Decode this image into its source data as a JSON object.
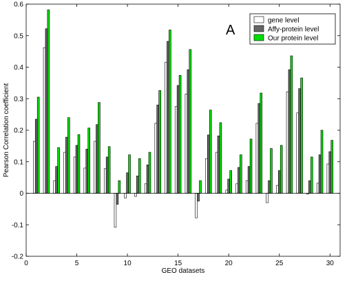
{
  "chart_data": {
    "type": "bar",
    "xlabel": "GEO datasets",
    "ylabel": "Pearson Correlation coefficient",
    "annotation": "A",
    "xlim": [
      0,
      31
    ],
    "ylim": [
      -0.2,
      0.6
    ],
    "xticks": [
      0,
      5,
      10,
      15,
      20,
      25,
      30
    ],
    "yticks": [
      -0.2,
      -0.1,
      0,
      0.1,
      0.2,
      0.3,
      0.4,
      0.5,
      0.6
    ],
    "legend_position": "top-right",
    "grid": false,
    "categories": [
      1,
      2,
      3,
      4,
      5,
      6,
      7,
      8,
      9,
      10,
      11,
      12,
      13,
      14,
      15,
      16,
      17,
      18,
      19,
      20,
      21,
      22,
      23,
      24,
      25,
      26,
      27,
      28,
      29,
      30
    ],
    "series": [
      {
        "name": "gene level",
        "color": "#ffffff",
        "values": [
          0.165,
          0.462,
          0.04,
          0.13,
          0.115,
          0.08,
          0.165,
          0.078,
          -0.108,
          -0.015,
          -0.01,
          0.03,
          0.222,
          0.416,
          0.275,
          0.315,
          -0.078,
          0.11,
          0.13,
          0.01,
          0.03,
          0.04,
          0.222,
          -0.03,
          0.025,
          0.322,
          0.255,
          -0.003,
          0.032,
          0.093
        ]
      },
      {
        "name": "Affy-protein level",
        "color": "#666666",
        "values": [
          0.235,
          0.522,
          0.085,
          0.178,
          0.152,
          0.14,
          0.218,
          0.115,
          -0.035,
          0.065,
          0.055,
          0.09,
          0.28,
          0.482,
          0.342,
          0.392,
          -0.025,
          0.185,
          0.182,
          0.045,
          0.082,
          0.085,
          0.285,
          0.04,
          0.072,
          0.392,
          0.332,
          0.04,
          0.122,
          0.132
        ]
      },
      {
        "name": "Our protein level",
        "color": "#00dd00",
        "values": [
          0.305,
          0.582,
          0.145,
          0.24,
          0.186,
          0.207,
          0.288,
          0.148,
          0.04,
          0.122,
          0.11,
          0.13,
          0.326,
          0.518,
          0.374,
          0.456,
          0.04,
          0.264,
          0.224,
          0.072,
          0.122,
          0.172,
          0.318,
          0.142,
          0.152,
          0.436,
          0.366,
          0.115,
          0.2,
          0.168
        ]
      }
    ]
  }
}
